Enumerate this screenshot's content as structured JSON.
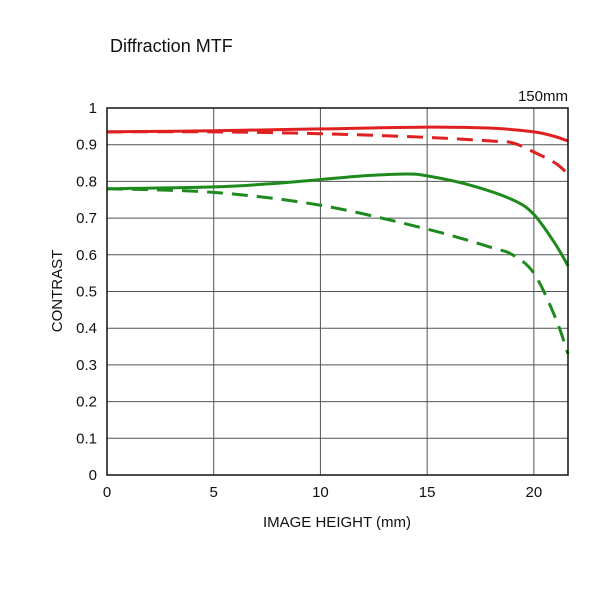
{
  "chart_data": {
    "type": "line",
    "title": "Diffraction MTF",
    "subtitle": "150mm",
    "xlabel": "IMAGE HEIGHT (mm)",
    "ylabel": "CONTRAST",
    "xlim": [
      0,
      21.6
    ],
    "ylim": [
      0,
      1
    ],
    "grid": true,
    "xticks": [
      0,
      5,
      10,
      15,
      20
    ],
    "xtick_labels": [
      "0",
      "5",
      "10",
      "15",
      "20"
    ],
    "yticks": [
      0,
      0.1,
      0.2,
      0.3,
      0.4,
      0.5,
      0.6,
      0.7,
      0.8,
      0.9,
      1
    ],
    "ytick_labels": [
      "0",
      "0.1",
      "0.2",
      "0.3",
      "0.4",
      "0.5",
      "0.6",
      "0.7",
      "0.8",
      "0.9",
      "1"
    ],
    "series": [
      {
        "name": "red-solid",
        "color": "#e02020",
        "dash": false,
        "x": [
          0,
          5,
          10,
          15,
          18,
          20,
          21,
          21.6
        ],
        "y": [
          0.935,
          0.938,
          0.943,
          0.948,
          0.945,
          0.935,
          0.922,
          0.91
        ]
      },
      {
        "name": "red-dashed",
        "color": "#e02020",
        "dash": true,
        "x": [
          0,
          5,
          10,
          15,
          18,
          19,
          20,
          21,
          21.6
        ],
        "y": [
          0.935,
          0.935,
          0.93,
          0.92,
          0.91,
          0.905,
          0.88,
          0.85,
          0.82
        ]
      },
      {
        "name": "green-solid",
        "color": "#1e8a1e",
        "dash": false,
        "x": [
          0,
          5,
          8,
          10,
          12,
          14,
          15,
          17,
          19,
          20,
          21,
          21.6
        ],
        "y": [
          0.78,
          0.785,
          0.795,
          0.805,
          0.815,
          0.82,
          0.815,
          0.79,
          0.75,
          0.71,
          0.63,
          0.57
        ]
      },
      {
        "name": "green-dashed",
        "color": "#1e8a1e",
        "dash": true,
        "x": [
          0,
          5,
          10,
          15,
          18,
          19,
          20,
          21,
          21.6
        ],
        "y": [
          0.78,
          0.77,
          0.735,
          0.67,
          0.62,
          0.6,
          0.55,
          0.43,
          0.33
        ]
      }
    ]
  }
}
